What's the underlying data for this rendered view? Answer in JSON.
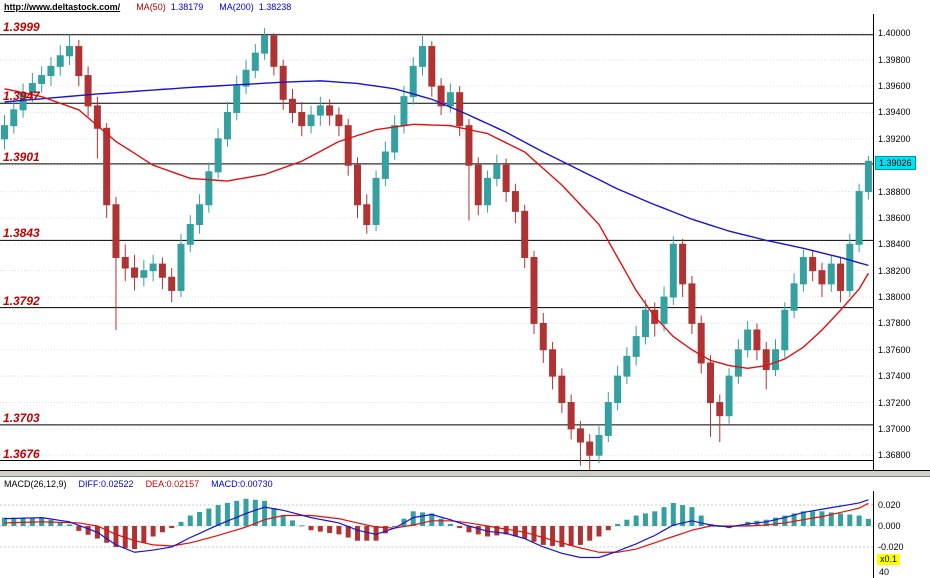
{
  "header": {
    "url": "http://www.deltastock.com/",
    "ma50_label": "MA(50)",
    "ma50_value": "1.38179",
    "ma200_label": "MA(200)",
    "ma200_value": "1.38238"
  },
  "price_axis": {
    "ticks": [
      "1.40000",
      "1.39800",
      "1.39600",
      "1.39400",
      "1.39200",
      "1.39000",
      "1.38800",
      "1.38600",
      "1.38400",
      "1.38200",
      "1.38000",
      "1.37800",
      "1.37600",
      "1.37400",
      "1.37200",
      "1.37000",
      "1.36800"
    ],
    "current_price": "1.39026"
  },
  "macd_header": {
    "title": "MACD(26,12,9)",
    "diff": "DIFF:0.02522",
    "dea": "DEA:0.02157",
    "macd": "MACD:0.00730"
  },
  "macd_axis": {
    "ticks": [
      "0.020",
      "0.000",
      "-0.020"
    ],
    "scale_label": "x0.1",
    "corner_label": "40"
  },
  "colors": {
    "up": "#35a0a0",
    "down": "#b03333",
    "ma50": "#e01010",
    "ma200": "#1515d0",
    "diff_line": "#1515d0",
    "dea_line": "#e01010",
    "level_line": "#000000",
    "level_label": "#c00000",
    "price_tag_bg": "#00e0ee",
    "scale_tag_bg": "#ffff00"
  },
  "chart_data": {
    "type": "candlestick",
    "title": "",
    "ylim": [
      1.3669,
      1.40145
    ],
    "grid": true,
    "levels": [
      {
        "label": "1.3999",
        "value": 1.3999
      },
      {
        "label": "1.3947",
        "value": 1.3947
      },
      {
        "label": "1.3901",
        "value": 1.3901
      },
      {
        "label": "1.3843",
        "value": 1.3843
      },
      {
        "label": "1.3792",
        "value": 1.3792
      },
      {
        "label": "1.3703",
        "value": 1.3703
      },
      {
        "label": "1.3676",
        "value": 1.3676
      }
    ],
    "candles": [
      [
        1.392,
        1.3938,
        1.3912,
        1.393
      ],
      [
        1.393,
        1.395,
        1.3924,
        1.3942
      ],
      [
        1.3942,
        1.3962,
        1.3936,
        1.3955
      ],
      [
        1.3955,
        1.397,
        1.3948,
        1.3962
      ],
      [
        1.3962,
        1.3975,
        1.3955,
        1.3968
      ],
      [
        1.3968,
        1.3982,
        1.396,
        1.3975
      ],
      [
        1.3975,
        1.3991,
        1.3968,
        1.3983
      ],
      [
        1.3983,
        1.3999,
        1.3976,
        1.399
      ],
      [
        1.399,
        1.3995,
        1.396,
        1.3968
      ],
      [
        1.3968,
        1.3975,
        1.3937,
        1.3945
      ],
      [
        1.3945,
        1.3952,
        1.3905,
        1.3928
      ],
      [
        1.3928,
        1.3932,
        1.386,
        1.387
      ],
      [
        1.387,
        1.3876,
        1.3775,
        1.383
      ],
      [
        1.383,
        1.384,
        1.3812,
        1.3822
      ],
      [
        1.3822,
        1.3832,
        1.3805,
        1.3815
      ],
      [
        1.3815,
        1.3828,
        1.3808,
        1.382
      ],
      [
        1.382,
        1.3832,
        1.3812,
        1.3825
      ],
      [
        1.3825,
        1.383,
        1.3806,
        1.3815
      ],
      [
        1.3815,
        1.3822,
        1.3796,
        1.3805
      ],
      [
        1.3805,
        1.3848,
        1.38,
        1.384
      ],
      [
        1.384,
        1.3862,
        1.3834,
        1.3855
      ],
      [
        1.3855,
        1.3878,
        1.3848,
        1.387
      ],
      [
        1.387,
        1.3902,
        1.3864,
        1.3895
      ],
      [
        1.3895,
        1.3928,
        1.389,
        1.392
      ],
      [
        1.392,
        1.3948,
        1.3914,
        1.394
      ],
      [
        1.394,
        1.3968,
        1.3934,
        1.396
      ],
      [
        1.396,
        1.398,
        1.3954,
        1.3972
      ],
      [
        1.3972,
        1.3992,
        1.3966,
        1.3985
      ],
      [
        1.3985,
        1.4004,
        1.398,
        1.3998
      ],
      [
        1.3998,
        1.4,
        1.3968,
        1.3975
      ],
      [
        1.3975,
        1.398,
        1.3942,
        1.395
      ],
      [
        1.395,
        1.3958,
        1.3932,
        1.394
      ],
      [
        1.394,
        1.3948,
        1.3922,
        1.393
      ],
      [
        1.393,
        1.3945,
        1.3924,
        1.3938
      ],
      [
        1.3938,
        1.3952,
        1.393,
        1.3945
      ],
      [
        1.3945,
        1.395,
        1.393,
        1.3938
      ],
      [
        1.3938,
        1.3944,
        1.3922,
        1.393
      ],
      [
        1.393,
        1.3935,
        1.3892,
        1.39
      ],
      [
        1.39,
        1.3906,
        1.386,
        1.387
      ],
      [
        1.387,
        1.3878,
        1.3848,
        1.3855
      ],
      [
        1.3855,
        1.3896,
        1.385,
        1.389
      ],
      [
        1.389,
        1.3918,
        1.3884,
        1.391
      ],
      [
        1.391,
        1.3938,
        1.3904,
        1.393
      ],
      [
        1.393,
        1.396,
        1.3924,
        1.3952
      ],
      [
        1.3952,
        1.3982,
        1.3946,
        1.3975
      ],
      [
        1.3975,
        1.3998,
        1.3968,
        1.399
      ],
      [
        1.399,
        1.3994,
        1.3952,
        1.396
      ],
      [
        1.396,
        1.3966,
        1.3938,
        1.3945
      ],
      [
        1.3945,
        1.3962,
        1.394,
        1.3955
      ],
      [
        1.3955,
        1.396,
        1.3922,
        1.393
      ],
      [
        1.393,
        1.3935,
        1.3858,
        1.39
      ],
      [
        1.39,
        1.3906,
        1.3862,
        1.387
      ],
      [
        1.387,
        1.3896,
        1.3864,
        1.389
      ],
      [
        1.389,
        1.3908,
        1.3884,
        1.39
      ],
      [
        1.39,
        1.3905,
        1.3872,
        1.388
      ],
      [
        1.388,
        1.3886,
        1.3856,
        1.3865
      ],
      [
        1.3865,
        1.387,
        1.3822,
        1.383
      ],
      [
        1.383,
        1.3835,
        1.3772,
        1.378
      ],
      [
        1.378,
        1.3788,
        1.375,
        1.376
      ],
      [
        1.376,
        1.3766,
        1.373,
        1.374
      ],
      [
        1.374,
        1.3746,
        1.3712,
        1.372
      ],
      [
        1.372,
        1.3726,
        1.3692,
        1.37
      ],
      [
        1.37,
        1.3706,
        1.3672,
        1.369
      ],
      [
        1.369,
        1.3696,
        1.3668,
        1.368
      ],
      [
        1.368,
        1.3702,
        1.3674,
        1.3695
      ],
      [
        1.3695,
        1.3728,
        1.369,
        1.372
      ],
      [
        1.372,
        1.3748,
        1.3714,
        1.374
      ],
      [
        1.374,
        1.3762,
        1.3734,
        1.3755
      ],
      [
        1.3755,
        1.3778,
        1.3748,
        1.377
      ],
      [
        1.377,
        1.3798,
        1.3764,
        1.379
      ],
      [
        1.379,
        1.3796,
        1.377,
        1.378
      ],
      [
        1.378,
        1.3808,
        1.3774,
        1.38
      ],
      [
        1.38,
        1.3846,
        1.3794,
        1.384
      ],
      [
        1.384,
        1.3844,
        1.38,
        1.381
      ],
      [
        1.381,
        1.3816,
        1.3772,
        1.378
      ],
      [
        1.378,
        1.3786,
        1.3742,
        1.375
      ],
      [
        1.375,
        1.3756,
        1.3694,
        1.372
      ],
      [
        1.372,
        1.3726,
        1.369,
        1.371
      ],
      [
        1.371,
        1.3746,
        1.3704,
        1.374
      ],
      [
        1.374,
        1.3768,
        1.3734,
        1.376
      ],
      [
        1.376,
        1.3782,
        1.3754,
        1.3775
      ],
      [
        1.3775,
        1.378,
        1.3752,
        1.376
      ],
      [
        1.376,
        1.3766,
        1.373,
        1.3745
      ],
      [
        1.3745,
        1.3768,
        1.374,
        1.376
      ],
      [
        1.376,
        1.3796,
        1.3754,
        1.379
      ],
      [
        1.379,
        1.3818,
        1.3784,
        1.381
      ],
      [
        1.381,
        1.3836,
        1.3804,
        1.383
      ],
      [
        1.383,
        1.3835,
        1.3812,
        1.382
      ],
      [
        1.382,
        1.3826,
        1.38,
        1.381
      ],
      [
        1.381,
        1.3832,
        1.3804,
        1.3825
      ],
      [
        1.3825,
        1.383,
        1.3796,
        1.3805
      ],
      [
        1.3805,
        1.3848,
        1.38,
        1.384
      ],
      [
        1.384,
        1.3886,
        1.3834,
        1.388
      ],
      [
        1.388,
        1.3907,
        1.3874,
        1.3903
      ]
    ],
    "ma50_points": [
      [
        0,
        1.3958
      ],
      [
        4,
        1.3952
      ],
      [
        8,
        1.3942
      ],
      [
        12,
        1.3918
      ],
      [
        16,
        1.39
      ],
      [
        20,
        1.389
      ],
      [
        24,
        1.3888
      ],
      [
        28,
        1.3893
      ],
      [
        32,
        1.3903
      ],
      [
        36,
        1.3918
      ],
      [
        40,
        1.3927
      ],
      [
        44,
        1.3931
      ],
      [
        48,
        1.393
      ],
      [
        52,
        1.3924
      ],
      [
        56,
        1.391
      ],
      [
        60,
        1.3885
      ],
      [
        64,
        1.3855
      ],
      [
        66,
        1.383
      ],
      [
        68,
        1.3805
      ],
      [
        70,
        1.3785
      ],
      [
        72,
        1.377
      ],
      [
        74,
        1.376
      ],
      [
        76,
        1.3752
      ],
      [
        78,
        1.3748
      ],
      [
        80,
        1.3746
      ],
      [
        82,
        1.3748
      ],
      [
        84,
        1.3753
      ],
      [
        86,
        1.3762
      ],
      [
        88,
        1.3775
      ],
      [
        90,
        1.379
      ],
      [
        92,
        1.3806
      ],
      [
        93,
        1.3818
      ]
    ],
    "ma200_points": [
      [
        0,
        1.3948
      ],
      [
        10,
        1.3954
      ],
      [
        20,
        1.3959
      ],
      [
        30,
        1.3963
      ],
      [
        34,
        1.3964
      ],
      [
        38,
        1.3962
      ],
      [
        42,
        1.3958
      ],
      [
        46,
        1.395
      ],
      [
        50,
        1.3938
      ],
      [
        54,
        1.3925
      ],
      [
        58,
        1.391
      ],
      [
        62,
        1.3896
      ],
      [
        66,
        1.3882
      ],
      [
        70,
        1.387
      ],
      [
        74,
        1.3859
      ],
      [
        78,
        1.385
      ],
      [
        82,
        1.3843
      ],
      [
        86,
        1.3837
      ],
      [
        90,
        1.383
      ],
      [
        93,
        1.3824
      ]
    ],
    "macd": {
      "hist_scale": 2,
      "diff_points": [
        [
          0,
          0.007
        ],
        [
          4,
          0.008
        ],
        [
          7,
          0.004
        ],
        [
          10,
          -0.006
        ],
        [
          12,
          -0.018
        ],
        [
          14,
          -0.025
        ],
        [
          16,
          -0.023
        ],
        [
          18,
          -0.02
        ],
        [
          20,
          -0.011
        ],
        [
          23,
          0.001
        ],
        [
          26,
          0.012
        ],
        [
          28,
          0.018
        ],
        [
          30,
          0.015
        ],
        [
          33,
          0.008
        ],
        [
          36,
          0.003
        ],
        [
          38,
          -0.004
        ],
        [
          40,
          -0.008
        ],
        [
          42,
          -0.002
        ],
        [
          44,
          0.008
        ],
        [
          46,
          0.011
        ],
        [
          48,
          0.006
        ],
        [
          50,
          0.0
        ],
        [
          52,
          -0.005
        ],
        [
          54,
          -0.007
        ],
        [
          56,
          -0.012
        ],
        [
          58,
          -0.02
        ],
        [
          60,
          -0.026
        ],
        [
          62,
          -0.03
        ],
        [
          64,
          -0.03
        ],
        [
          66,
          -0.024
        ],
        [
          68,
          -0.017
        ],
        [
          70,
          -0.009
        ],
        [
          72,
          0.001
        ],
        [
          74,
          0.005
        ],
        [
          76,
          0.001
        ],
        [
          78,
          -0.001
        ],
        [
          80,
          0.002
        ],
        [
          82,
          0.004
        ],
        [
          84,
          0.008
        ],
        [
          86,
          0.013
        ],
        [
          88,
          0.016
        ],
        [
          90,
          0.019
        ],
        [
          92,
          0.022
        ],
        [
          93,
          0.025
        ]
      ],
      "dea_points": [
        [
          0,
          0.003
        ],
        [
          4,
          0.004
        ],
        [
          8,
          0.003
        ],
        [
          10,
          0.0
        ],
        [
          12,
          -0.008
        ],
        [
          14,
          -0.014
        ],
        [
          16,
          -0.018
        ],
        [
          18,
          -0.019
        ],
        [
          20,
          -0.016
        ],
        [
          23,
          -0.009
        ],
        [
          26,
          -0.001
        ],
        [
          28,
          0.006
        ],
        [
          30,
          0.01
        ],
        [
          33,
          0.01
        ],
        [
          36,
          0.007
        ],
        [
          38,
          0.003
        ],
        [
          40,
          -0.001
        ],
        [
          42,
          -0.002
        ],
        [
          44,
          0.001
        ],
        [
          46,
          0.005
        ],
        [
          48,
          0.005
        ],
        [
          50,
          0.003
        ],
        [
          52,
          0.0
        ],
        [
          54,
          -0.003
        ],
        [
          56,
          -0.006
        ],
        [
          58,
          -0.011
        ],
        [
          60,
          -0.016
        ],
        [
          62,
          -0.021
        ],
        [
          64,
          -0.025
        ],
        [
          66,
          -0.025
        ],
        [
          68,
          -0.022
        ],
        [
          70,
          -0.016
        ],
        [
          72,
          -0.01
        ],
        [
          74,
          -0.004
        ],
        [
          76,
          0.0
        ],
        [
          78,
          0.0
        ],
        [
          80,
          0.0
        ],
        [
          82,
          0.001
        ],
        [
          84,
          0.003
        ],
        [
          86,
          0.006
        ],
        [
          88,
          0.009
        ],
        [
          90,
          0.013
        ],
        [
          92,
          0.017
        ],
        [
          93,
          0.0216
        ]
      ]
    }
  }
}
